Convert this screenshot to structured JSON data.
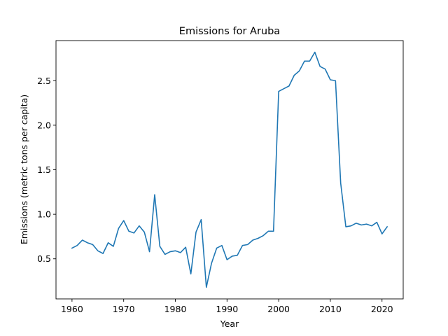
{
  "chart_data": {
    "type": "line",
    "title": "Emissions for Aruba",
    "xlabel": "Year",
    "ylabel": "Emissions (metric tons per capita)",
    "xlim": [
      1956.9,
      2024.1
    ],
    "ylim": [
      0.05,
      2.95
    ],
    "xticks": [
      1960,
      1970,
      1980,
      1990,
      2000,
      2010,
      2020
    ],
    "yticks": [
      0.5,
      1.0,
      1.5,
      2.0,
      2.5
    ],
    "ytick_labels": [
      "0.5",
      "1.0",
      "1.5",
      "2.0",
      "2.5"
    ],
    "grid": false,
    "series": [
      {
        "color": "#1f77b4",
        "x": [
          1960,
          1961,
          1962,
          1963,
          1964,
          1965,
          1966,
          1967,
          1968,
          1969,
          1970,
          1971,
          1972,
          1973,
          1974,
          1975,
          1976,
          1977,
          1978,
          1979,
          1980,
          1981,
          1982,
          1983,
          1984,
          1985,
          1986,
          1987,
          1988,
          1989,
          1990,
          1991,
          1992,
          1993,
          1994,
          1995,
          1996,
          1997,
          1998,
          1999,
          2000,
          2001,
          2002,
          2003,
          2004,
          2005,
          2006,
          2007,
          2008,
          2009,
          2010,
          2011,
          2012,
          2013,
          2014,
          2015,
          2016,
          2017,
          2018,
          2019,
          2020,
          2021
        ],
        "y": [
          0.62,
          0.65,
          0.71,
          0.68,
          0.66,
          0.59,
          0.56,
          0.68,
          0.64,
          0.84,
          0.93,
          0.81,
          0.79,
          0.87,
          0.8,
          0.58,
          1.22,
          0.64,
          0.55,
          0.58,
          0.59,
          0.57,
          0.63,
          0.33,
          0.8,
          0.94,
          0.18,
          0.45,
          0.62,
          0.65,
          0.49,
          0.53,
          0.54,
          0.65,
          0.66,
          0.71,
          0.73,
          0.76,
          0.81,
          0.81,
          2.38,
          2.41,
          2.44,
          2.56,
          2.61,
          2.72,
          2.72,
          2.82,
          2.66,
          2.63,
          2.51,
          2.5,
          1.35,
          0.86,
          0.87,
          0.9,
          0.88,
          0.89,
          0.87,
          0.91,
          0.78,
          0.86
        ]
      }
    ]
  }
}
